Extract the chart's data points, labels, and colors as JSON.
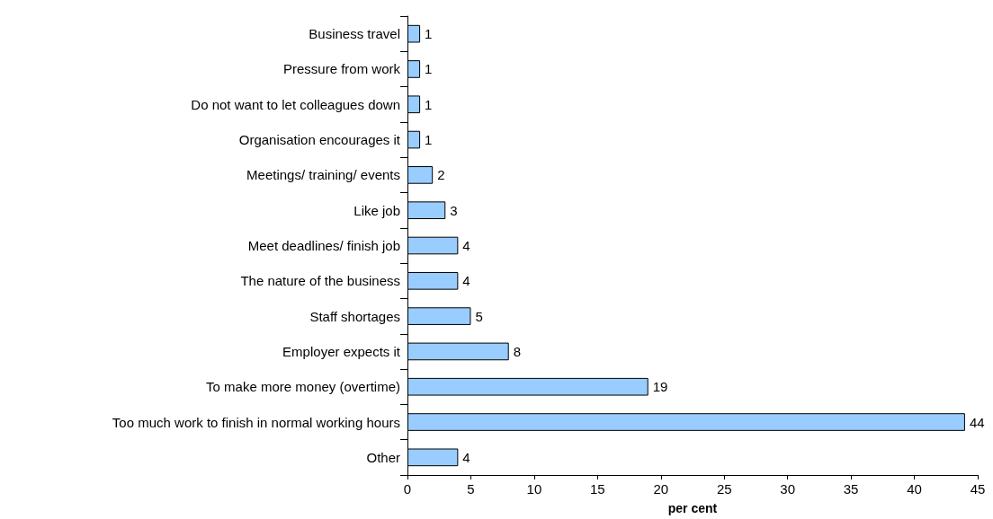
{
  "chart_data": {
    "type": "bar",
    "orientation": "horizontal",
    "xlabel": "per cent",
    "categories": [
      "Business travel",
      "Pressure from work",
      "Do not want to let colleagues down",
      "Organisation encourages it",
      "Meetings/ training/ events",
      "Like job",
      "Meet deadlines/ finish job",
      "The nature of the business",
      "Staff shortages",
      "Employer expects it",
      "To make more money (overtime)",
      "Too much work to finish in normal working hours",
      "Other"
    ],
    "values": [
      1,
      1,
      1,
      1,
      2,
      3,
      4,
      4,
      5,
      8,
      19,
      44,
      4
    ],
    "color": "#99ccff",
    "xlim": [
      0,
      45
    ],
    "xticks": [
      0,
      5,
      10,
      15,
      20,
      25,
      30,
      35,
      40,
      45
    ],
    "data_labels": true
  }
}
